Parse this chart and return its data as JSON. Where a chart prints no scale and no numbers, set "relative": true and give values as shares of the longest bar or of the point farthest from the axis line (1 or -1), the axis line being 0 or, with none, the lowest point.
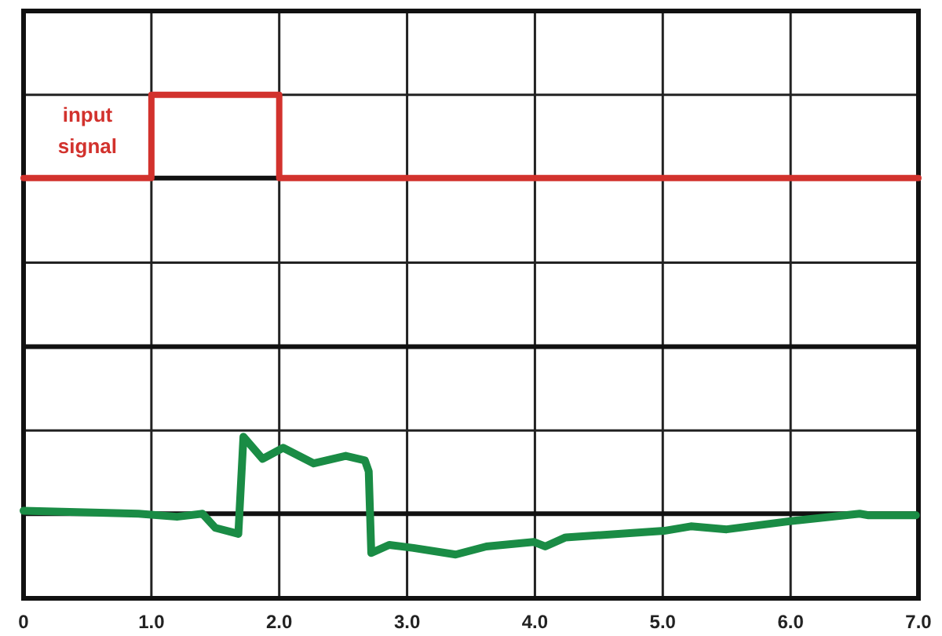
{
  "chart_data": {
    "type": "line",
    "relative": true,
    "xlim": [
      0,
      7
    ],
    "xticks": [
      0,
      {
        "value": 1,
        "label": "1.0"
      },
      {
        "value": 2,
        "label": "2.0"
      },
      {
        "value": 3,
        "label": "3.0"
      },
      {
        "value": 4,
        "label": "4.0"
      },
      {
        "value": 5,
        "label": "5.0"
      },
      {
        "value": 6,
        "label": "6.0"
      },
      {
        "value": 7,
        "label": "7.0"
      }
    ],
    "grid": true,
    "ref_lines": [
      {
        "axis": "y",
        "value": 0.835,
        "color": "#111111"
      },
      {
        "axis": "y",
        "value": 0.5,
        "color": "#111111"
      },
      {
        "axis": "y",
        "value": 0.168,
        "color": "#111111"
      }
    ],
    "series": [
      {
        "name": "input signal",
        "color": "#d2322d",
        "x": [
          0,
          1,
          1,
          2,
          2,
          7
        ],
        "values": [
          0.835,
          0.835,
          1,
          1,
          0.835,
          0.835
        ]
      },
      {
        "color": "#1a8c45",
        "x": [
          0,
          0.9,
          1.2,
          1.4,
          1.5,
          1.68,
          1.72,
          1.87,
          2.03,
          2.27,
          2.52,
          2.67,
          2.7,
          2.72,
          2.86,
          3.05,
          3.38,
          3.62,
          3.99,
          4.08,
          4.24,
          5.01,
          5.22,
          5.5,
          5.99,
          6.54,
          6.61,
          6.98
        ],
        "values": [
          0.174,
          0.168,
          0.162,
          0.168,
          0.14,
          0.128,
          0.321,
          0.277,
          0.299,
          0.268,
          0.283,
          0.274,
          0.252,
          0.09,
          0.106,
          0.1,
          0.087,
          0.103,
          0.112,
          0.103,
          0.121,
          0.134,
          0.143,
          0.137,
          0.153,
          0.168,
          0.165,
          0.165
        ]
      }
    ]
  }
}
